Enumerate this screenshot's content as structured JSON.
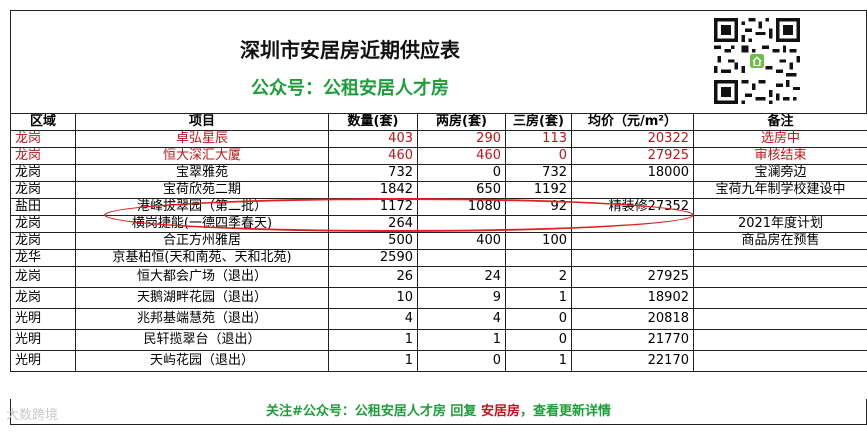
{
  "title": "深圳市安居房近期供应表",
  "subtitle": "公众号：公租安居人才房",
  "headers": [
    "区域",
    "项目",
    "数量(套)",
    "两房(套)",
    "三房(套)",
    "均价（元/m²）",
    "备注"
  ],
  "rows": [
    {
      "region": "龙岗",
      "name": "卓弘星辰",
      "count": "403",
      "two": "290",
      "three": "113",
      "price": "20322",
      "note": "选房中",
      "red": true
    },
    {
      "region": "龙岗",
      "name": "恒大深汇大厦",
      "count": "460",
      "two": "460",
      "three": "0",
      "price": "27925",
      "note": "审核结束",
      "red": true
    },
    {
      "region": "龙岗",
      "name": "宝翠雅苑",
      "count": "732",
      "two": "0",
      "three": "732",
      "price": "18000",
      "note": "宝澜旁边",
      "red": false
    },
    {
      "region": "龙岗",
      "name": "宝荷欣苑二期",
      "count": "1842",
      "two": "650",
      "three": "1192",
      "price": "",
      "note": "宝荷九年制学校建设中",
      "red": false
    },
    {
      "region": "盐田",
      "name": "港峰拔翠园（第二批）",
      "count": "1172",
      "two": "1080",
      "three": "92",
      "price": "精装修27352",
      "note": "",
      "red": false
    },
    {
      "region": "龙岗",
      "name": "横岗捷能(一德四季春天)",
      "count": "264",
      "two": "",
      "three": "",
      "price": "",
      "note": "2021年度计划",
      "red": false
    },
    {
      "region": "龙岗",
      "name": "合正方州雅居",
      "count": "500",
      "two": "400",
      "three": "100",
      "price": "",
      "note": "商品房在预售",
      "red": false
    },
    {
      "region": "龙华",
      "name": "京基柏恒(天和南苑、天和北苑)",
      "count": "2590",
      "two": "",
      "three": "",
      "price": "",
      "note": "",
      "red": false
    },
    {
      "region": "龙岗",
      "name": "恒大都会广场（退出）",
      "count": "26",
      "two": "24",
      "three": "2",
      "price": "27925",
      "note": "",
      "red": false
    },
    {
      "region": "龙岗",
      "name": "天鹅湖畔花园（退出）",
      "count": "10",
      "two": "9",
      "three": "1",
      "price": "18902",
      "note": "",
      "red": false
    },
    {
      "region": "光明",
      "name": "兆邦基端慧苑（退出）",
      "count": "4",
      "two": "4",
      "three": "0",
      "price": "20818",
      "note": "",
      "red": false
    },
    {
      "region": "光明",
      "name": "民轩揽翠台（退出）",
      "count": "1",
      "two": "1",
      "three": "0",
      "price": "21770",
      "note": "",
      "red": false
    },
    {
      "region": "光明",
      "name": "天屿花园（退出）",
      "count": "1",
      "two": "0",
      "three": "1",
      "price": "22170",
      "note": "",
      "red": false
    }
  ],
  "footer": {
    "part1": "关注#公众号：公租安居人才房 回复 ",
    "part2": "安居房",
    "part3": "，查看更新详情"
  },
  "watermark": "大数跨境",
  "colors": {
    "accent_red": "#c0161b",
    "accent_green": "#1e9e3a",
    "ellipse": "#e02020"
  }
}
